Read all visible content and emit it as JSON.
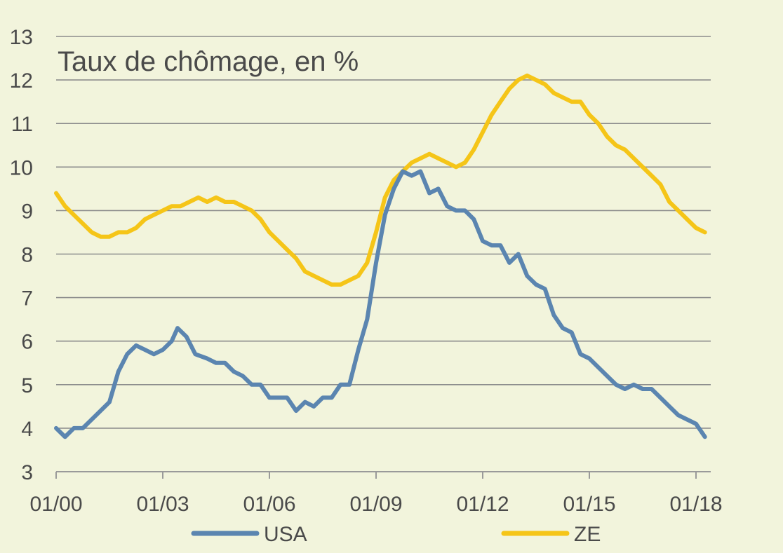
{
  "chart_data": {
    "type": "line",
    "title": "Taux de chômage, en %",
    "xlabel": "",
    "ylabel": "",
    "ylim": [
      3,
      13
    ],
    "yticks": [
      "3",
      "4",
      "5",
      "6",
      "7",
      "8",
      "9",
      "10",
      "11",
      "12",
      "13"
    ],
    "xlim": [
      "2000-01",
      "2018-04"
    ],
    "xticks": [
      "01/00",
      "01/03",
      "01/06",
      "01/09",
      "01/12",
      "01/15",
      "01/18"
    ],
    "grid": "horizontal",
    "legend_position": "bottom",
    "series": [
      {
        "name": "USA",
        "color": "#5b85b0",
        "points": [
          [
            "2000-01",
            4.0
          ],
          [
            "2000-04",
            3.8
          ],
          [
            "2000-07",
            4.0
          ],
          [
            "2000-10",
            4.0
          ],
          [
            "2001-01",
            4.2
          ],
          [
            "2001-04",
            4.4
          ],
          [
            "2001-07",
            4.6
          ],
          [
            "2001-10",
            5.3
          ],
          [
            "2002-01",
            5.7
          ],
          [
            "2002-04",
            5.9
          ],
          [
            "2002-07",
            5.8
          ],
          [
            "2002-10",
            5.7
          ],
          [
            "2003-01",
            5.8
          ],
          [
            "2003-04",
            6.0
          ],
          [
            "2003-06",
            6.3
          ],
          [
            "2003-09",
            6.1
          ],
          [
            "2003-12",
            5.7
          ],
          [
            "2004-04",
            5.6
          ],
          [
            "2004-07",
            5.5
          ],
          [
            "2004-10",
            5.5
          ],
          [
            "2005-01",
            5.3
          ],
          [
            "2005-04",
            5.2
          ],
          [
            "2005-07",
            5.0
          ],
          [
            "2005-10",
            5.0
          ],
          [
            "2006-01",
            4.7
          ],
          [
            "2006-04",
            4.7
          ],
          [
            "2006-07",
            4.7
          ],
          [
            "2006-10",
            4.4
          ],
          [
            "2007-01",
            4.6
          ],
          [
            "2007-04",
            4.5
          ],
          [
            "2007-07",
            4.7
          ],
          [
            "2007-10",
            4.7
          ],
          [
            "2008-01",
            5.0
          ],
          [
            "2008-04",
            5.0
          ],
          [
            "2008-07",
            5.8
          ],
          [
            "2008-10",
            6.5
          ],
          [
            "2009-01",
            7.8
          ],
          [
            "2009-04",
            8.9
          ],
          [
            "2009-07",
            9.5
          ],
          [
            "2009-10",
            9.9
          ],
          [
            "2010-01",
            9.8
          ],
          [
            "2010-04",
            9.9
          ],
          [
            "2010-07",
            9.4
          ],
          [
            "2010-10",
            9.5
          ],
          [
            "2011-01",
            9.1
          ],
          [
            "2011-04",
            9.0
          ],
          [
            "2011-07",
            9.0
          ],
          [
            "2011-10",
            8.8
          ],
          [
            "2012-01",
            8.3
          ],
          [
            "2012-04",
            8.2
          ],
          [
            "2012-07",
            8.2
          ],
          [
            "2012-10",
            7.8
          ],
          [
            "2013-01",
            8.0
          ],
          [
            "2013-04",
            7.5
          ],
          [
            "2013-07",
            7.3
          ],
          [
            "2013-10",
            7.2
          ],
          [
            "2014-01",
            6.6
          ],
          [
            "2014-04",
            6.3
          ],
          [
            "2014-07",
            6.2
          ],
          [
            "2014-10",
            5.7
          ],
          [
            "2015-01",
            5.6
          ],
          [
            "2015-04",
            5.4
          ],
          [
            "2015-07",
            5.2
          ],
          [
            "2015-10",
            5.0
          ],
          [
            "2016-01",
            4.9
          ],
          [
            "2016-04",
            5.0
          ],
          [
            "2016-07",
            4.9
          ],
          [
            "2016-10",
            4.9
          ],
          [
            "2017-01",
            4.7
          ],
          [
            "2017-04",
            4.5
          ],
          [
            "2017-07",
            4.3
          ],
          [
            "2017-10",
            4.2
          ],
          [
            "2018-01",
            4.1
          ],
          [
            "2018-04",
            3.8
          ]
        ]
      },
      {
        "name": "ZE",
        "color": "#f5c518",
        "points": [
          [
            "2000-01",
            9.4
          ],
          [
            "2000-04",
            9.1
          ],
          [
            "2000-07",
            8.9
          ],
          [
            "2000-10",
            8.7
          ],
          [
            "2001-01",
            8.5
          ],
          [
            "2001-04",
            8.4
          ],
          [
            "2001-07",
            8.4
          ],
          [
            "2001-10",
            8.5
          ],
          [
            "2002-01",
            8.5
          ],
          [
            "2002-04",
            8.6
          ],
          [
            "2002-07",
            8.8
          ],
          [
            "2002-10",
            8.9
          ],
          [
            "2003-01",
            9.0
          ],
          [
            "2003-04",
            9.1
          ],
          [
            "2003-07",
            9.1
          ],
          [
            "2003-10",
            9.2
          ],
          [
            "2004-01",
            9.3
          ],
          [
            "2004-04",
            9.2
          ],
          [
            "2004-07",
            9.3
          ],
          [
            "2004-10",
            9.2
          ],
          [
            "2005-01",
            9.2
          ],
          [
            "2005-04",
            9.1
          ],
          [
            "2005-07",
            9.0
          ],
          [
            "2005-10",
            8.8
          ],
          [
            "2006-01",
            8.5
          ],
          [
            "2006-04",
            8.3
          ],
          [
            "2006-07",
            8.1
          ],
          [
            "2006-10",
            7.9
          ],
          [
            "2007-01",
            7.6
          ],
          [
            "2007-04",
            7.5
          ],
          [
            "2007-07",
            7.4
          ],
          [
            "2007-10",
            7.3
          ],
          [
            "2008-01",
            7.3
          ],
          [
            "2008-04",
            7.4
          ],
          [
            "2008-07",
            7.5
          ],
          [
            "2008-10",
            7.8
          ],
          [
            "2009-01",
            8.5
          ],
          [
            "2009-04",
            9.3
          ],
          [
            "2009-07",
            9.7
          ],
          [
            "2009-10",
            9.9
          ],
          [
            "2010-01",
            10.1
          ],
          [
            "2010-04",
            10.2
          ],
          [
            "2010-07",
            10.3
          ],
          [
            "2010-10",
            10.2
          ],
          [
            "2011-01",
            10.1
          ],
          [
            "2011-04",
            10.0
          ],
          [
            "2011-07",
            10.1
          ],
          [
            "2011-10",
            10.4
          ],
          [
            "2012-01",
            10.8
          ],
          [
            "2012-04",
            11.2
          ],
          [
            "2012-07",
            11.5
          ],
          [
            "2012-10",
            11.8
          ],
          [
            "2013-01",
            12.0
          ],
          [
            "2013-04",
            12.1
          ],
          [
            "2013-07",
            12.0
          ],
          [
            "2013-10",
            11.9
          ],
          [
            "2014-01",
            11.7
          ],
          [
            "2014-04",
            11.6
          ],
          [
            "2014-07",
            11.5
          ],
          [
            "2014-10",
            11.5
          ],
          [
            "2015-01",
            11.2
          ],
          [
            "2015-04",
            11.0
          ],
          [
            "2015-07",
            10.7
          ],
          [
            "2015-10",
            10.5
          ],
          [
            "2016-01",
            10.4
          ],
          [
            "2016-04",
            10.2
          ],
          [
            "2016-07",
            10.0
          ],
          [
            "2016-10",
            9.8
          ],
          [
            "2017-01",
            9.6
          ],
          [
            "2017-04",
            9.2
          ],
          [
            "2017-07",
            9.0
          ],
          [
            "2017-10",
            8.8
          ],
          [
            "2018-01",
            8.6
          ],
          [
            "2018-04",
            8.5
          ]
        ]
      }
    ]
  }
}
